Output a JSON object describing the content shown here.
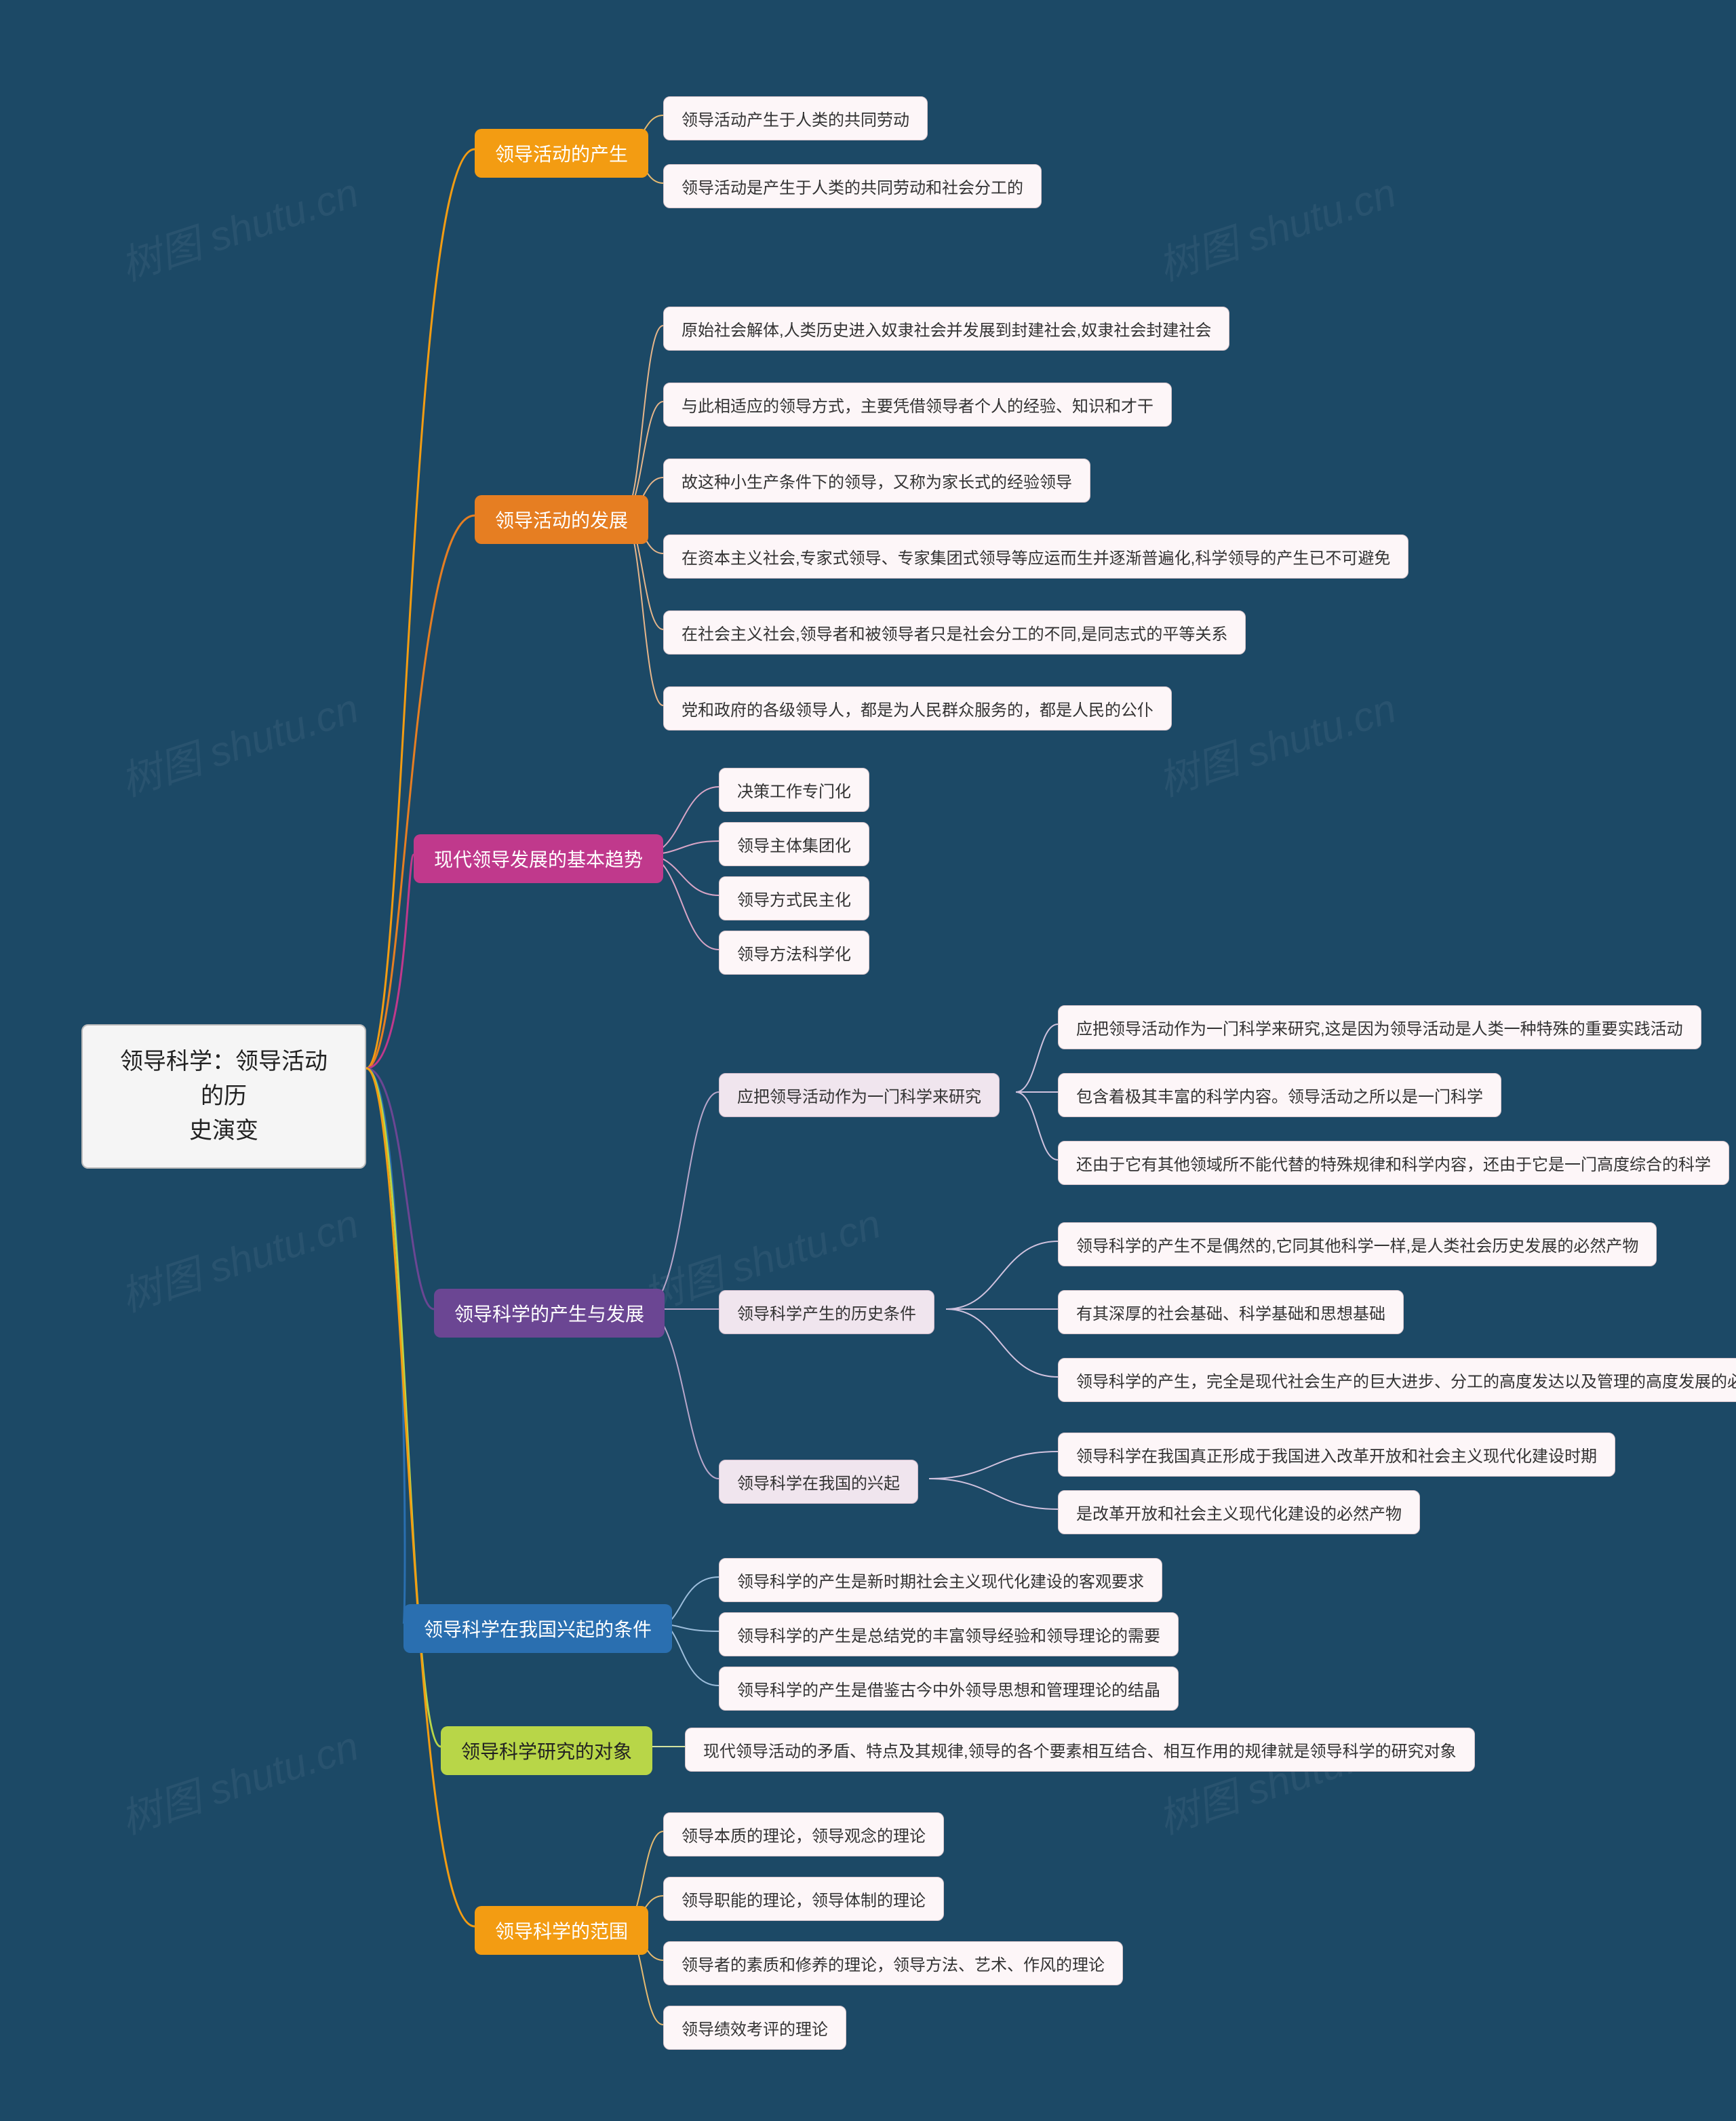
{
  "background_color": "#1c4966",
  "watermark_text": "树图 shutu.cn",
  "root": {
    "label": "领导科学：领导活动的历\n史演变",
    "bg": "#f5f5f5",
    "border": "#bbbbbb"
  },
  "branches": [
    {
      "id": "b1",
      "label": "领导活动的产生",
      "bg": "#f39c12",
      "text_dark": false,
      "leaves": [
        {
          "label": "领导活动产生于人类的共同劳动"
        },
        {
          "label": "领导活动是产生于人类的共同劳动和社会分工的"
        }
      ]
    },
    {
      "id": "b2",
      "label": "领导活动的发展",
      "bg": "#e67e22",
      "text_dark": false,
      "leaves": [
        {
          "label": "原始社会解体,人类历史进入奴隶社会并发展到封建社会,奴隶社会封建社会"
        },
        {
          "label": "与此相适应的领导方式，主要凭借领导者个人的经验、知识和才干"
        },
        {
          "label": "故这种小生产条件下的领导，又称为家长式的经验领导"
        },
        {
          "label": "在资本主义社会,专家式领导、专家集团式领导等应运而生并逐渐普遍化,科学领导的产生已不可避免"
        },
        {
          "label": "在社会主义社会,领导者和被领导者只是社会分工的不同,是同志式的平等关系"
        },
        {
          "label": "党和政府的各级领导人，都是为人民群众服务的，都是人民的公仆"
        }
      ]
    },
    {
      "id": "b3",
      "label": "现代领导发展的基本趋势",
      "bg": "#c0398c",
      "text_dark": false,
      "leaves": [
        {
          "label": "决策工作专门化"
        },
        {
          "label": "领导主体集团化"
        },
        {
          "label": "领导方式民主化"
        },
        {
          "label": "领导方法科学化"
        }
      ]
    },
    {
      "id": "b4",
      "label": "领导科学的产生与发展",
      "bg": "#6b4693",
      "text_dark": false,
      "subs": [
        {
          "label": "应把领导活动作为一门科学来研究",
          "leaves": [
            {
              "label": "应把领导活动作为一门科学来研究,这是因为领导活动是人类一种特殊的重要实践活动"
            },
            {
              "label": "包含着极其丰富的科学内容。领导活动之所以是一门科学"
            },
            {
              "label": "还由于它有其他领域所不能代替的特殊规律和科学内容，还由于它是一门高度综合的科学"
            }
          ]
        },
        {
          "label": "领导科学产生的历史条件",
          "leaves": [
            {
              "label": "领导科学的产生不是偶然的,它同其他科学一样,是人类社会历史发展的必然产物"
            },
            {
              "label": "有其深厚的社会基础、科学基础和思想基础"
            },
            {
              "label": "领导科学的产生，完全是现代社会生产的巨大进步、分工的高度发达以及管理的高度发展的必然结果"
            }
          ]
        },
        {
          "label": "领导科学在我国的兴起",
          "leaves": [
            {
              "label": "领导科学在我国真正形成于我国进入改革开放和社会主义现代化建设时期"
            },
            {
              "label": "是改革开放和社会主义现代化建设的必然产物"
            }
          ]
        }
      ]
    },
    {
      "id": "b5",
      "label": "领导科学在我国兴起的条件",
      "bg": "#2a6fb0",
      "text_dark": false,
      "leaves": [
        {
          "label": "领导科学的产生是新时期社会主义现代化建设的客观要求"
        },
        {
          "label": "领导科学的产生是总结党的丰富领导经验和领导理论的需要"
        },
        {
          "label": "领导科学的产生是借鉴古今中外领导思想和管理理论的结晶"
        }
      ]
    },
    {
      "id": "b6",
      "label": "领导科学研究的对象",
      "bg": "#b8d648",
      "text_dark": true,
      "leaves": [
        {
          "label": "现代领导活动的矛盾、特点及其规律,领导的各个要素相互结合、相互作用的规律就是领导科学的研究对象"
        }
      ]
    },
    {
      "id": "b7",
      "label": "领导科学的范围",
      "bg": "#f39c12",
      "text_dark": false,
      "leaves": [
        {
          "label": "领导本质的理论，领导观念的理论"
        },
        {
          "label": "领导职能的理论，领导体制的理论"
        },
        {
          "label": "领导者的素质和修养的理论，领导方法、艺术、作风的理论"
        },
        {
          "label": "领导绩效考评的理论"
        }
      ]
    }
  ]
}
